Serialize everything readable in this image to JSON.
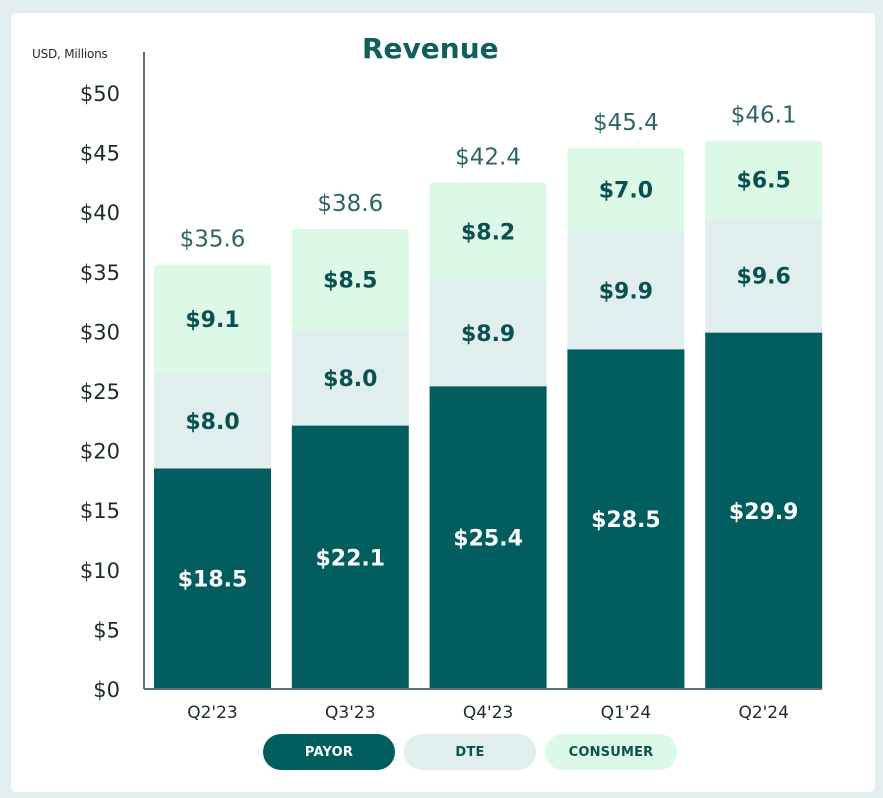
{
  "unit_label": "USD, Millions",
  "colors": {
    "payor": "#025d5f",
    "dte": "#e0eeee",
    "consumer": "#dcf8e6",
    "total_label": "#2f6568",
    "axis": "#5a6f7b",
    "tick_label": "#1f2a2a",
    "dark_text": "#0b5050",
    "light_text": "#ffffff"
  },
  "chart_data": {
    "type": "bar",
    "stacked": true,
    "title": "Revenue",
    "xlabel": "",
    "ylabel": "USD, Millions",
    "ylim": [
      0,
      50
    ],
    "yticks": [
      0,
      5,
      10,
      15,
      20,
      25,
      30,
      35,
      40,
      45,
      50
    ],
    "ytick_labels": [
      "$0",
      "$5",
      "$10",
      "$15",
      "$20",
      "$25",
      "$30",
      "$35",
      "$40",
      "$45",
      "$50"
    ],
    "categories": [
      "Q2'23",
      "Q3'23",
      "Q4'23",
      "Q1'24",
      "Q2'24"
    ],
    "series": [
      {
        "name": "PAYOR",
        "values": [
          18.5,
          22.1,
          25.4,
          28.5,
          29.9
        ],
        "labels": [
          "$18.5",
          "$22.1",
          "$25.4",
          "$28.5",
          "$29.9"
        ]
      },
      {
        "name": "DTE",
        "values": [
          8.0,
          8.0,
          8.9,
          9.9,
          9.6
        ],
        "labels": [
          "$8.0",
          "$8.0",
          "$8.9",
          "$9.9",
          "$9.6"
        ]
      },
      {
        "name": "CONSUMER",
        "values": [
          9.1,
          8.5,
          8.2,
          7.0,
          6.5
        ],
        "labels": [
          "$9.1",
          "$8.5",
          "$8.2",
          "$7.0",
          "$6.5"
        ]
      }
    ],
    "totals": [
      35.6,
      38.6,
      42.4,
      45.4,
      46.1
    ],
    "total_labels": [
      "$35.6",
      "$38.6",
      "$42.4",
      "$45.4",
      "$46.1"
    ],
    "legend_position": "bottom",
    "grid": false
  }
}
